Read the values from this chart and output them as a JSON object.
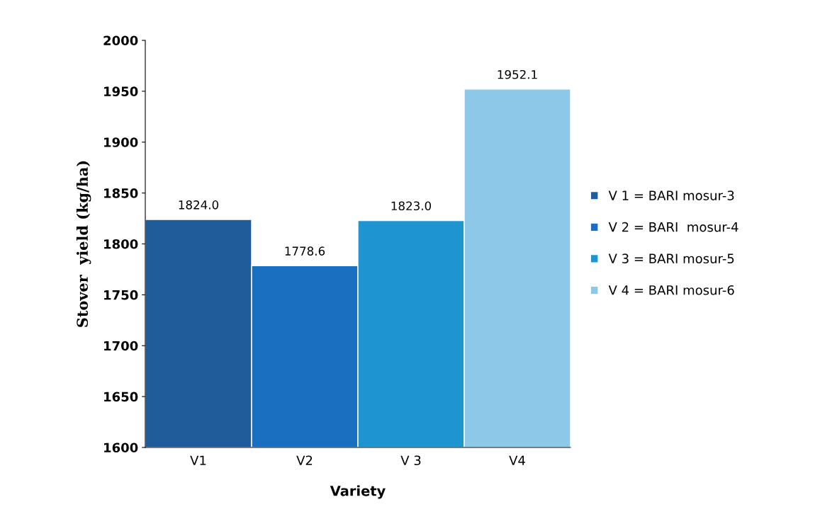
{
  "chart_data": {
    "type": "bar",
    "xlabel": "Variety",
    "ylabel": "Stover  yield (kg/ha)",
    "categories": [
      "V1",
      "V2",
      "V 3",
      "V4"
    ],
    "series": [
      {
        "name": "V 1 = BARI mosur-3",
        "color": "#1f5c99",
        "values": [
          1824.0,
          null,
          null,
          null
        ],
        "value_labels": [
          "1824.0",
          null,
          null,
          null
        ]
      },
      {
        "name": "V 2 = BARI  mosur-4",
        "color": "#1a6fc0",
        "values": [
          null,
          1778.6,
          null,
          null
        ],
        "value_labels": [
          null,
          "1778.6",
          null,
          null
        ]
      },
      {
        "name": "V 3 = BARI mosur-5",
        "color": "#1e95d0",
        "values": [
          null,
          null,
          1823.0,
          null
        ],
        "value_labels": [
          null,
          null,
          "1823.0",
          null
        ]
      },
      {
        "name": "V 4 = BARI mosur-6",
        "color": "#8dc8e8",
        "values": [
          null,
          null,
          null,
          1952.1
        ],
        "value_labels": [
          null,
          null,
          null,
          "1952.1"
        ]
      }
    ],
    "ylim": [
      1600,
      2000
    ],
    "yticks": [
      1600,
      1650,
      1700,
      1750,
      1800,
      1850,
      1900,
      1950,
      2000
    ],
    "grid": false,
    "legend": "right"
  }
}
